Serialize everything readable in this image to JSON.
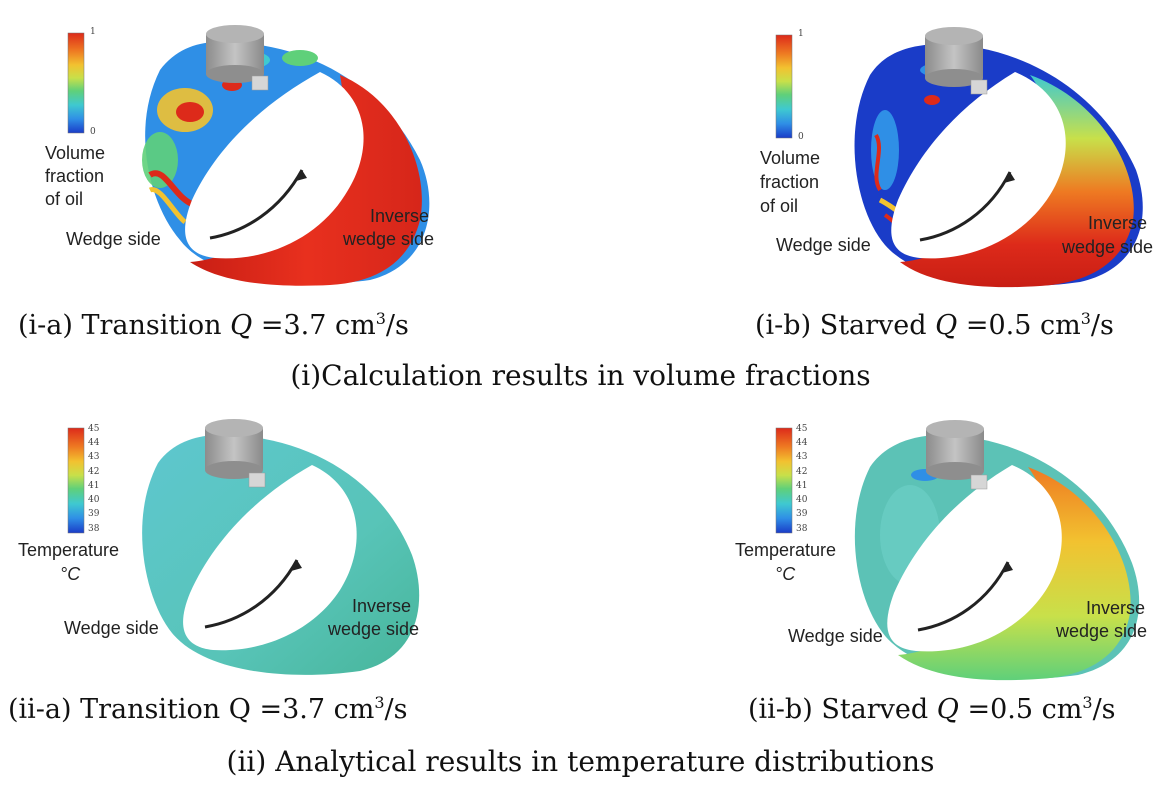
{
  "panels": [
    {
      "id": "i-a",
      "colorbar": {
        "title": [
          "Volume",
          "fraction",
          "of oil"
        ],
        "max_label": "1",
        "min_label": "0"
      },
      "wedge_label": "Wedge side",
      "inverse_label": [
        "Inverse",
        "wedge side"
      ],
      "caption": {
        "prefix": "(i-a) Transition ",
        "q": "Q",
        "value": " =3.7 cm",
        "sup": "3",
        "unit": "/s"
      }
    },
    {
      "id": "i-b",
      "colorbar": {
        "title": [
          "Volume",
          "fraction",
          "of oil"
        ],
        "max_label": "1",
        "min_label": "0"
      },
      "wedge_label": "Wedge side",
      "inverse_label": [
        "Inverse",
        "wedge side"
      ],
      "caption": {
        "prefix": "(i-b) Starved ",
        "q": "Q",
        "value": " =0.5 cm",
        "sup": "3",
        "unit": "/s"
      }
    },
    {
      "id": "ii-a",
      "colorbar": {
        "title": [
          "Temperature",
          "°C"
        ],
        "ticks": [
          "45",
          "44",
          "43",
          "42",
          "41",
          "40",
          "39",
          "38"
        ]
      },
      "wedge_label": "Wedge side",
      "inverse_label": [
        "Inverse",
        "wedge side"
      ],
      "caption": {
        "prefix": "(ii-a) Transition ",
        "q": "Q",
        "value": " =3.7 cm",
        "sup": "3",
        "unit": "/s"
      }
    },
    {
      "id": "ii-b",
      "colorbar": {
        "title": [
          "Temperature",
          "°C"
        ],
        "ticks": [
          "45",
          "44",
          "43",
          "42",
          "41",
          "40",
          "39",
          "38"
        ]
      },
      "wedge_label": "Wedge side",
      "inverse_label": [
        "Inverse",
        "wedge side"
      ],
      "caption": {
        "prefix": "(ii-b) Starved ",
        "q": "Q",
        "value": " =0.5 cm",
        "sup": "3",
        "unit": "/s"
      }
    }
  ],
  "section_captions": {
    "i": "(i)Calculation results in volume fractions",
    "ii": "(ii) Analytical results in temperature distributions"
  },
  "colors": {
    "jet": [
      "#1a3cc8",
      "#2f8fe6",
      "#3fc9d0",
      "#5fd07a",
      "#c8e04a",
      "#f2c230",
      "#ee7a22",
      "#dd2a1a"
    ],
    "oil_red": "#e02a1c",
    "cool_cyan": "#5ec7cf",
    "cylinder_gray": "#a8a8a8"
  }
}
